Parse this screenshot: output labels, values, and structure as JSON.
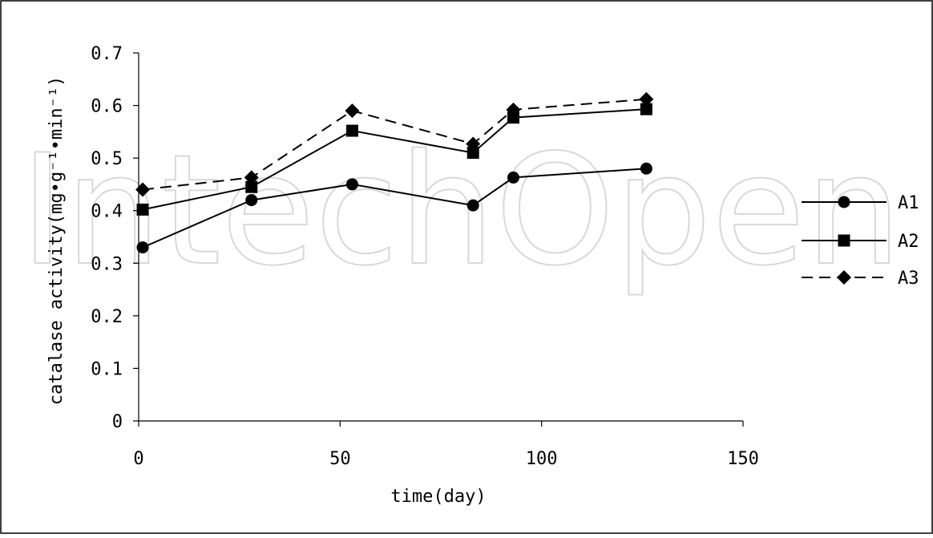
{
  "chart_data": {
    "type": "line",
    "xlabel": "time(day)",
    "ylabel": "catalase activity(mg•g⁻¹•min⁻¹)",
    "xlim": [
      0,
      150
    ],
    "ylim": [
      0,
      0.7
    ],
    "x_ticks": [
      "0",
      "50",
      "100",
      "150"
    ],
    "y_ticks": [
      "0",
      "0.1",
      "0.2",
      "0.3",
      "0.4",
      "0.5",
      "0.6",
      "0.7"
    ],
    "x": [
      1,
      28,
      53,
      83,
      93,
      126
    ],
    "grid": false,
    "legend_position": "right",
    "series": [
      {
        "name": "A1",
        "marker": "circle",
        "dash": "solid",
        "color": "#000000",
        "values": [
          0.33,
          0.42,
          0.45,
          0.41,
          0.463,
          0.48
        ]
      },
      {
        "name": "A2",
        "marker": "square",
        "dash": "solid",
        "color": "#000000",
        "values": [
          0.402,
          0.445,
          0.552,
          0.51,
          0.577,
          0.593
        ]
      },
      {
        "name": "A3",
        "marker": "diamond",
        "dash": "dashed",
        "color": "#000000",
        "values": [
          0.44,
          0.463,
          0.59,
          0.527,
          0.592,
          0.612
        ]
      }
    ]
  },
  "watermark": "IntechOpen"
}
